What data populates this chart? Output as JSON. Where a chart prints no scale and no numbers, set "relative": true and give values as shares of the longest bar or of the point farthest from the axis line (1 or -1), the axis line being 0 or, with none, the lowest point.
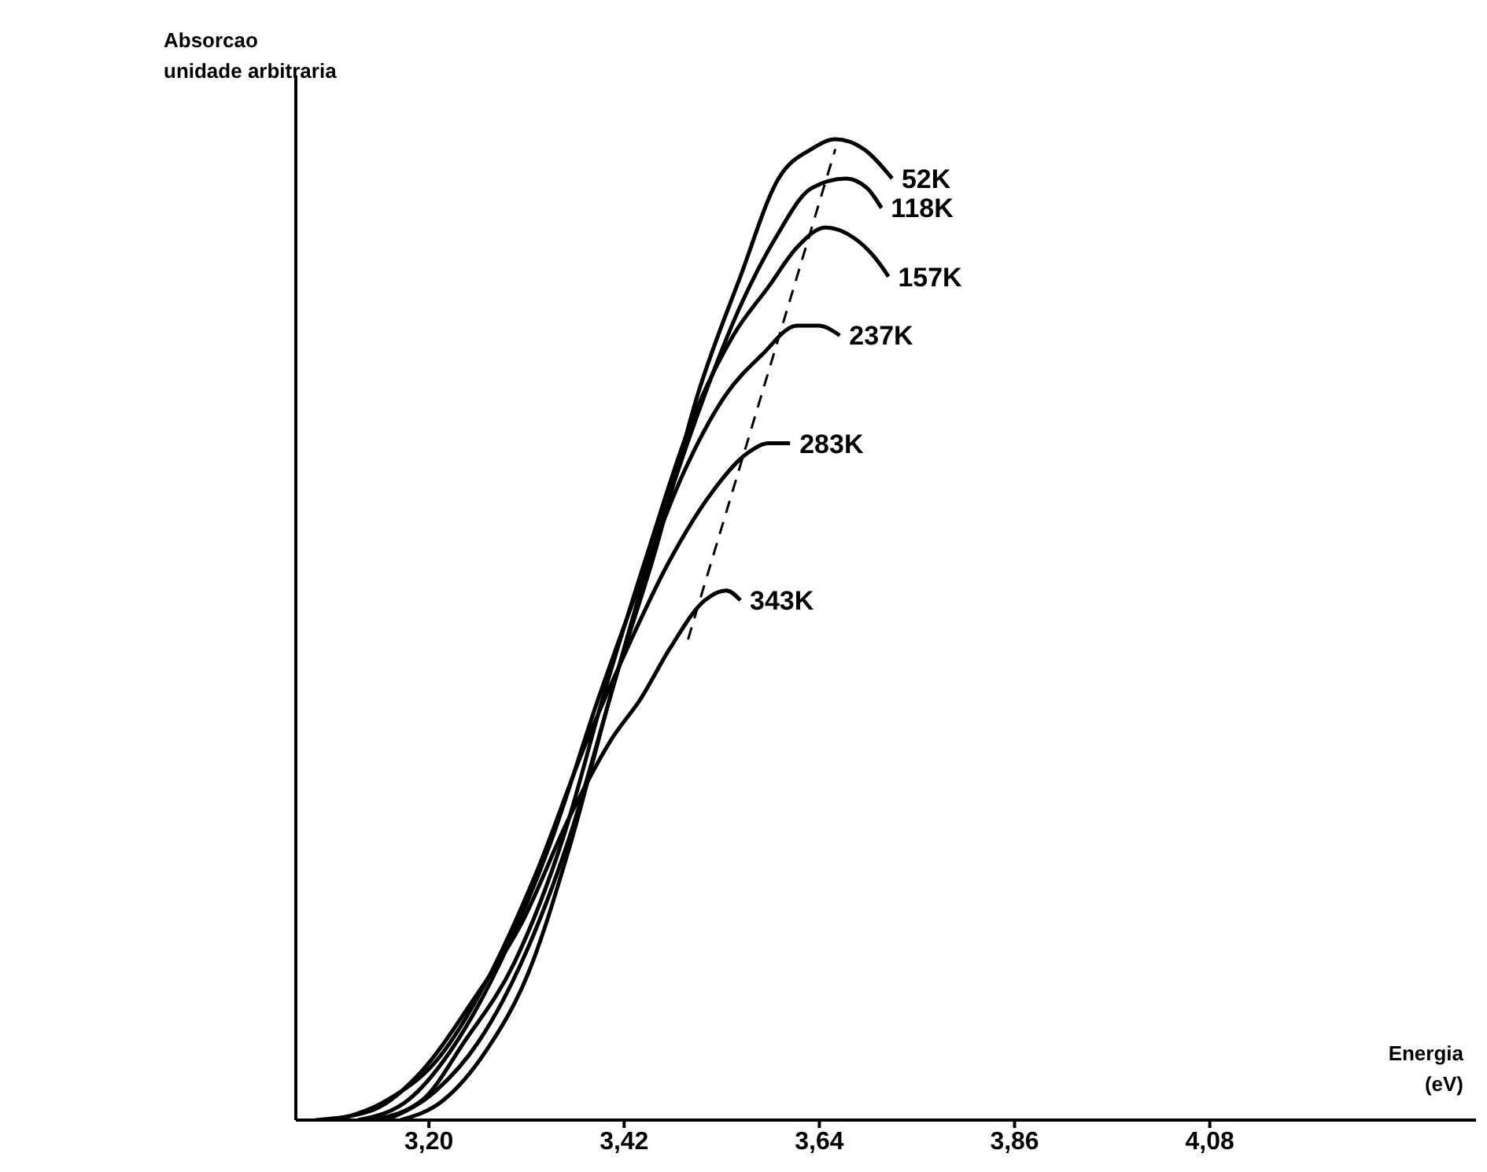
{
  "chart_data": {
    "type": "line",
    "relative": true,
    "ylabel": "Absorcao\nunidade arbitraria",
    "xlabel": "Energia\n(eV)",
    "xlim": [
      3.05,
      4.38
    ],
    "xticks": [
      {
        "value": 3.2,
        "label": "3,20"
      },
      {
        "value": 3.42,
        "label": "3,42"
      },
      {
        "value": 3.64,
        "label": "3,64"
      },
      {
        "value": 3.86,
        "label": "3,86"
      },
      {
        "value": 4.08,
        "label": "4,08"
      }
    ],
    "marker": "none",
    "series": [
      {
        "name": "52K",
        "color": "#000000",
        "x": [
          3.168,
          3.216,
          3.264,
          3.312,
          3.359,
          3.407,
          3.455,
          3.503,
          3.551,
          3.594,
          3.631,
          3.658,
          3.69,
          3.722
        ],
        "values": [
          0,
          0.02,
          0.07,
          0.15,
          0.28,
          0.44,
          0.58,
          0.74,
          0.86,
          0.96,
          0.99,
          1.0,
          0.99,
          0.96
        ]
      },
      {
        "name": "118K",
        "color": "#000000",
        "x": [
          3.152,
          3.208,
          3.256,
          3.304,
          3.359,
          3.407,
          3.455,
          3.503,
          3.551,
          3.591,
          3.631,
          3.67,
          3.694,
          3.71
        ],
        "values": [
          0,
          0.03,
          0.08,
          0.16,
          0.29,
          0.44,
          0.59,
          0.72,
          0.83,
          0.9,
          0.95,
          0.96,
          0.95,
          0.93
        ]
      },
      {
        "name": "157K",
        "color": "#000000",
        "x": [
          3.136,
          3.192,
          3.24,
          3.296,
          3.352,
          3.399,
          3.447,
          3.495,
          3.543,
          3.583,
          3.615,
          3.647,
          3.678,
          3.702,
          3.718
        ],
        "values": [
          0,
          0.02,
          0.08,
          0.16,
          0.29,
          0.44,
          0.58,
          0.71,
          0.8,
          0.85,
          0.89,
          0.91,
          0.9,
          0.88,
          0.86
        ]
      },
      {
        "name": "237K",
        "color": "#000000",
        "x": [
          3.12,
          3.176,
          3.224,
          3.28,
          3.336,
          3.391,
          3.439,
          3.487,
          3.535,
          3.575,
          3.615,
          3.639,
          3.663
        ],
        "values": [
          0,
          0.02,
          0.07,
          0.16,
          0.28,
          0.43,
          0.55,
          0.66,
          0.74,
          0.78,
          0.81,
          0.81,
          0.8
        ]
      },
      {
        "name": "283K",
        "color": "#000000",
        "x": [
          3.096,
          3.152,
          3.208,
          3.264,
          3.32,
          3.375,
          3.423,
          3.471,
          3.519,
          3.559,
          3.583,
          3.607
        ],
        "values": [
          0,
          0.02,
          0.06,
          0.14,
          0.25,
          0.38,
          0.48,
          0.57,
          0.64,
          0.68,
          0.69,
          0.69
        ]
      },
      {
        "name": "343K",
        "color": "#000000",
        "x": [
          3.072,
          3.136,
          3.192,
          3.248,
          3.304,
          3.359,
          3.407,
          3.439,
          3.471,
          3.511,
          3.535,
          3.551
        ],
        "values": [
          0,
          0.01,
          0.05,
          0.12,
          0.2,
          0.31,
          0.39,
          0.43,
          0.48,
          0.53,
          0.54,
          0.53
        ]
      },
      {
        "color": "#000000",
        "line_style": "dashed",
        "x": [
          3.492,
          3.658
        ],
        "values": [
          0.49,
          0.99
        ]
      }
    ]
  }
}
